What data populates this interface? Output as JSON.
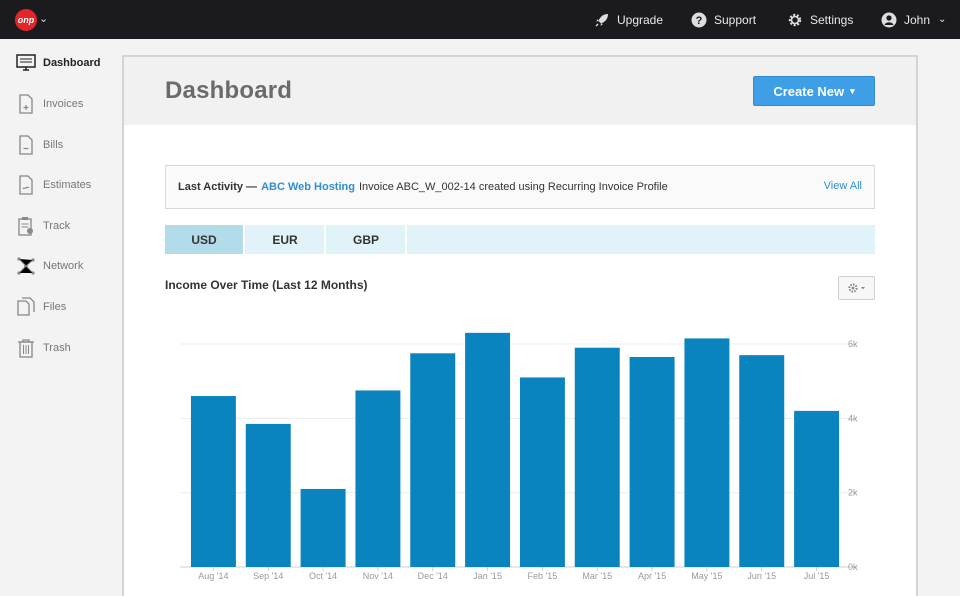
{
  "topbar": {
    "logo_text": "onp",
    "upgrade": "Upgrade",
    "support": "Support",
    "settings": "Settings",
    "user": "John"
  },
  "sidebar": {
    "items": [
      {
        "label": "Dashboard",
        "icon": "monitor-icon"
      },
      {
        "label": "Invoices",
        "icon": "invoice-icon"
      },
      {
        "label": "Bills",
        "icon": "bill-icon"
      },
      {
        "label": "Estimates",
        "icon": "estimate-icon"
      },
      {
        "label": "Track",
        "icon": "clipboard-icon"
      },
      {
        "label": "Network",
        "icon": "network-icon"
      },
      {
        "label": "Files",
        "icon": "files-icon"
      },
      {
        "label": "Trash",
        "icon": "trash-icon"
      }
    ]
  },
  "header": {
    "title": "Dashboard",
    "create_label": "Create New"
  },
  "activity": {
    "label": "Last Activity —",
    "link": "ABC Web Hosting",
    "text": "Invoice ABC_W_002-14 created using Recurring Invoice Profile",
    "view_all": "View All"
  },
  "currencies": [
    "USD",
    "EUR",
    "GBP"
  ],
  "selected_currency": "USD",
  "colors": {
    "accent": "#3e9ee6",
    "bar": "#0a84bf",
    "link": "#2d8fd5"
  },
  "chart_data": {
    "type": "bar",
    "title": "Income Over Time (Last 12 Months)",
    "categories": [
      "Aug '14",
      "Sep '14",
      "Oct '14",
      "Nov '14",
      "Dec '14",
      "Jan '15",
      "Feb '15",
      "Mar '15",
      "Apr '15",
      "May '15",
      "Jun '15",
      "Jul '15"
    ],
    "values": [
      4600,
      3850,
      2100,
      4750,
      5750,
      6300,
      5100,
      5900,
      5650,
      6150,
      5700,
      4200
    ],
    "y_ticks": [
      "0k",
      "2k",
      "4k",
      "6k"
    ],
    "ylim": [
      0,
      6000
    ],
    "grid": true
  }
}
